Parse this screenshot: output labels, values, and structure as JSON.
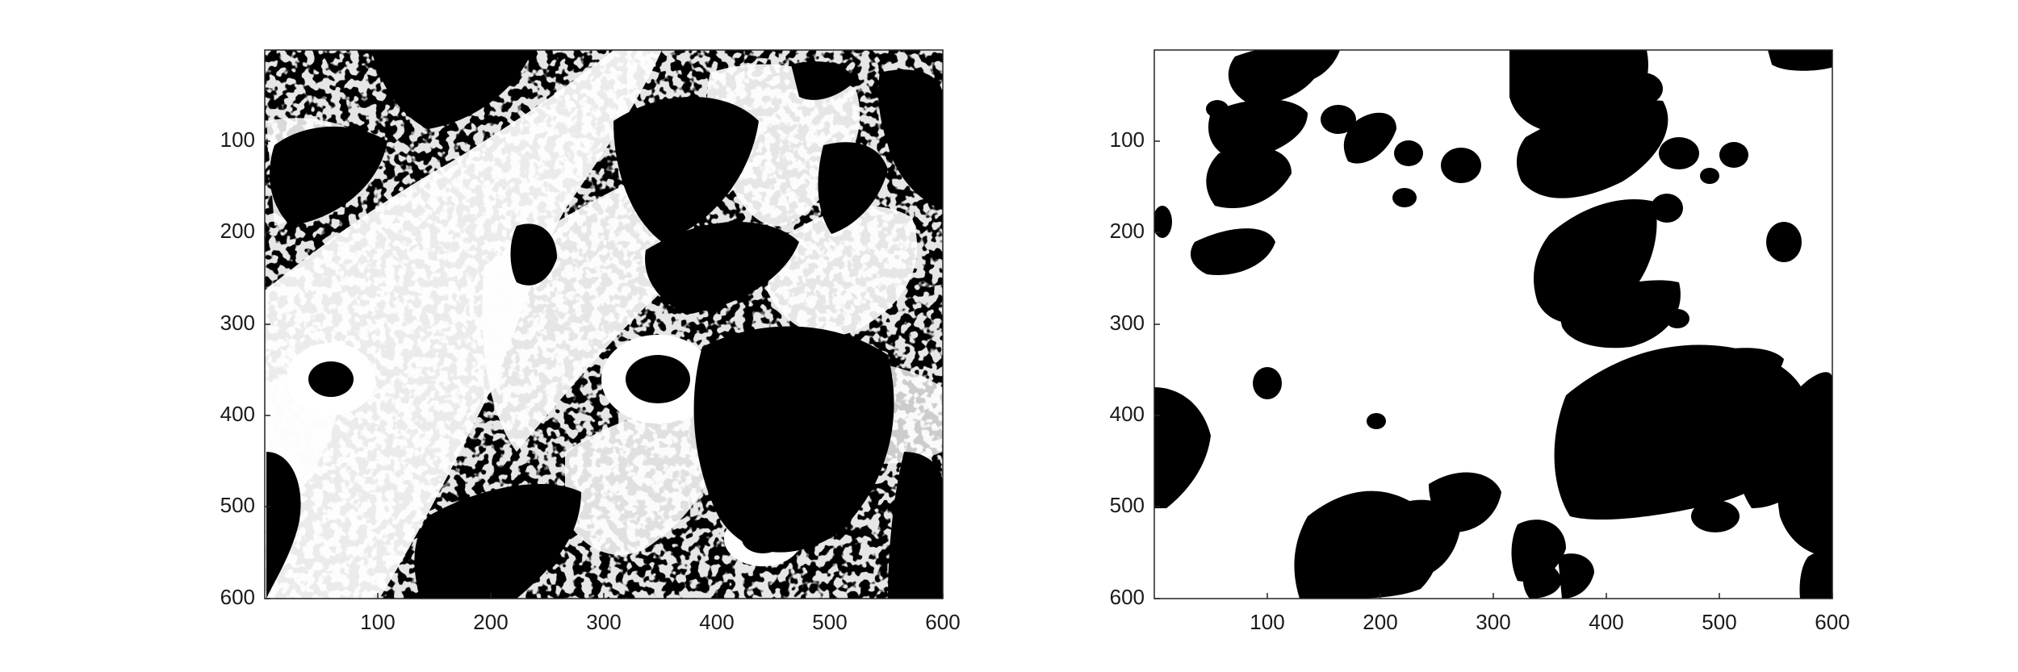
{
  "figure": {
    "background_color": "#ffffff",
    "panels": [
      {
        "id": "left",
        "content": "binary microscopy image: white cell membranes/cytoplasm on black background",
        "foreground_color": "#ffffff",
        "background_color": "#000000",
        "xlim": [
          0,
          600
        ],
        "ylim": [
          600,
          0
        ],
        "x_ticks": [
          "100",
          "200",
          "300",
          "400",
          "500",
          "600"
        ],
        "y_ticks": [
          "100",
          "200",
          "300",
          "400",
          "500",
          "600"
        ]
      },
      {
        "id": "right",
        "content": "binary mask: black blob regions on white background",
        "foreground_color": "#000000",
        "background_color": "#ffffff",
        "xlim": [
          0,
          600
        ],
        "ylim": [
          600,
          0
        ],
        "x_ticks": [
          "100",
          "200",
          "300",
          "400",
          "500",
          "600"
        ],
        "y_ticks": [
          "100",
          "200",
          "300",
          "400",
          "500",
          "600"
        ]
      }
    ]
  }
}
